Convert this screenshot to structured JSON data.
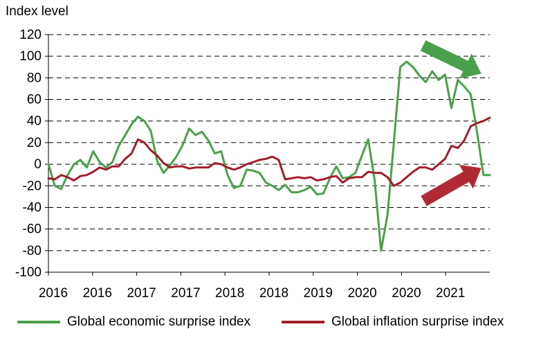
{
  "chart_data": {
    "type": "line",
    "title": "",
    "ylabel": "Index level",
    "xlabel": "",
    "ylim": [
      -100,
      120
    ],
    "y_ticks": [
      -100,
      -80,
      -60,
      -40,
      -20,
      0,
      20,
      40,
      60,
      80,
      100,
      120
    ],
    "x_tick_labels": [
      "2016",
      "2016",
      "2017",
      "2017",
      "2018",
      "2018",
      "2019",
      "2020",
      "2020",
      "2021"
    ],
    "grid": "horizontal dashed",
    "legend_position": "bottom",
    "x": [
      "2016-01",
      "2016-02",
      "2016-03",
      "2016-04",
      "2016-05",
      "2016-06",
      "2016-07",
      "2016-08",
      "2016-09",
      "2016-10",
      "2016-11",
      "2016-12",
      "2017-01",
      "2017-02",
      "2017-03",
      "2017-04",
      "2017-05",
      "2017-06",
      "2017-07",
      "2017-08",
      "2017-09",
      "2017-10",
      "2017-11",
      "2017-12",
      "2018-01",
      "2018-02",
      "2018-03",
      "2018-04",
      "2018-05",
      "2018-06",
      "2018-07",
      "2018-08",
      "2018-09",
      "2018-10",
      "2018-11",
      "2018-12",
      "2019-01",
      "2019-02",
      "2019-03",
      "2019-04",
      "2019-05",
      "2019-06",
      "2019-07",
      "2019-08",
      "2019-09",
      "2019-10",
      "2019-11",
      "2019-12",
      "2020-01",
      "2020-02",
      "2020-03",
      "2020-04",
      "2020-05",
      "2020-06",
      "2020-07",
      "2020-08",
      "2020-09",
      "2020-10",
      "2020-11",
      "2020-12",
      "2021-01",
      "2021-02",
      "2021-03",
      "2021-04",
      "2021-05",
      "2021-06",
      "2021-07",
      "2021-08",
      "2021-09",
      "2021-10"
    ],
    "series": [
      {
        "name": "Global economic surprise index",
        "color": "#4aa04a",
        "values": [
          0,
          -20,
          -23,
          -10,
          0,
          4,
          -3,
          12,
          2,
          -3,
          2,
          17,
          27,
          37,
          44,
          40,
          31,
          3,
          -8,
          -1,
          7,
          18,
          33,
          27,
          30,
          22,
          10,
          12,
          -10,
          -22,
          -20,
          -5,
          -6,
          -8,
          -17,
          -20,
          -24,
          -19,
          -26,
          -26,
          -24,
          -21,
          -28,
          -27,
          -13,
          -2,
          -13,
          -12,
          -8,
          8,
          23,
          -15,
          -80,
          -47,
          20,
          90,
          95,
          90,
          82,
          76,
          86,
          78,
          83,
          52,
          78,
          72,
          65,
          30,
          -10,
          -10
        ]
      },
      {
        "name": "Global inflation surprise index",
        "color": "#a21d2a",
        "values": [
          -13,
          -14,
          -10,
          -12,
          -15,
          -11,
          -10,
          -7,
          -3,
          -5,
          -2,
          -2,
          5,
          10,
          23,
          20,
          13,
          8,
          1,
          -3,
          -2,
          -2,
          -4,
          -3,
          -3,
          -3,
          1,
          0,
          -3,
          -5,
          -3,
          0,
          2,
          4,
          5,
          7,
          4,
          -14,
          -13,
          -12,
          -13,
          -12,
          -15,
          -14,
          -12,
          -11,
          -17,
          -13,
          -12,
          -12,
          -7,
          -8,
          -8,
          -12,
          -20,
          -17,
          -12,
          -7,
          -3,
          -3,
          -5,
          0,
          5,
          17,
          15,
          22,
          35,
          38,
          40,
          43
        ]
      }
    ]
  },
  "annotations": {
    "up_arrow_color": "#b02a36",
    "down_arrow_color": "#4aa04a"
  }
}
